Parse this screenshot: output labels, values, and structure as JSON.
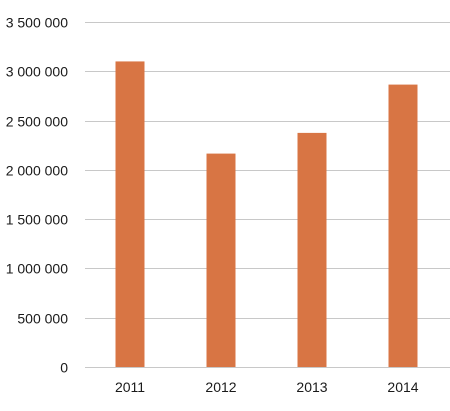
{
  "chart_data": {
    "type": "bar",
    "title": "",
    "xlabel": "",
    "ylabel": "",
    "categories": [
      "2011",
      "2012",
      "2013",
      "2014"
    ],
    "values": [
      3100000,
      2165000,
      2375000,
      2865000
    ],
    "ylim": [
      0,
      3500000
    ],
    "yticks": [
      0,
      500000,
      1000000,
      1500000,
      2000000,
      2500000,
      3000000,
      3500000
    ],
    "ytick_labels": [
      "0",
      "500 000",
      "1 000 000",
      "1 500 000",
      "2 000 000",
      "2 500 000",
      "3 000 000",
      "3 500 000"
    ],
    "grid": true,
    "legend": "none",
    "bar_color": "#d87544"
  }
}
